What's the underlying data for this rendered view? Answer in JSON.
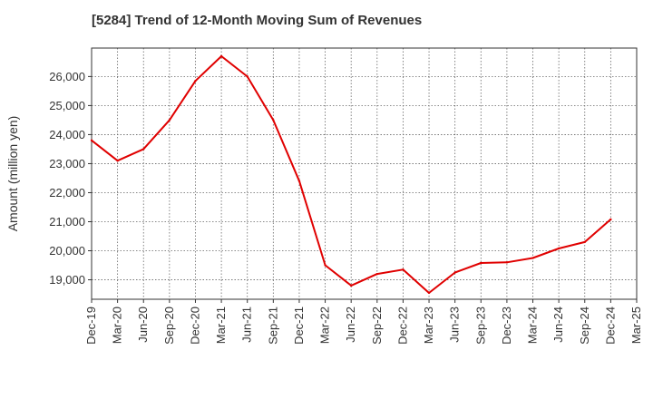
{
  "chart_data": {
    "type": "line",
    "title": "[5284]  Trend of 12-Month Moving Sum of Revenues",
    "xlabel": "",
    "ylabel": "Amount (million yen)",
    "x": [
      "Dec-19",
      "Mar-20",
      "Jun-20",
      "Sep-20",
      "Dec-20",
      "Mar-21",
      "Jun-21",
      "Sep-21",
      "Dec-21",
      "Mar-22",
      "Jun-22",
      "Sep-22",
      "Dec-22",
      "Mar-23",
      "Jun-23",
      "Sep-23",
      "Dec-23",
      "Mar-24",
      "Jun-24",
      "Sep-24",
      "Dec-24",
      "Mar-25"
    ],
    "yticks": [
      19000,
      20000,
      21000,
      22000,
      23000,
      24000,
      25000,
      26000
    ],
    "ytick_labels": [
      "19,000",
      "20,000",
      "21,000",
      "22,000",
      "23,000",
      "24,000",
      "25,000",
      "26,000"
    ],
    "ylim": [
      18330,
      26980
    ],
    "grid": true,
    "line_color": "#e00000",
    "series": [
      {
        "values": [
          23800,
          23100,
          23500,
          24500,
          25850,
          26700,
          26000,
          24500,
          22400,
          19500,
          18800,
          19200,
          19350,
          18550,
          19250,
          19580,
          19600,
          19750,
          20080,
          20300,
          21080,
          null
        ]
      }
    ]
  }
}
